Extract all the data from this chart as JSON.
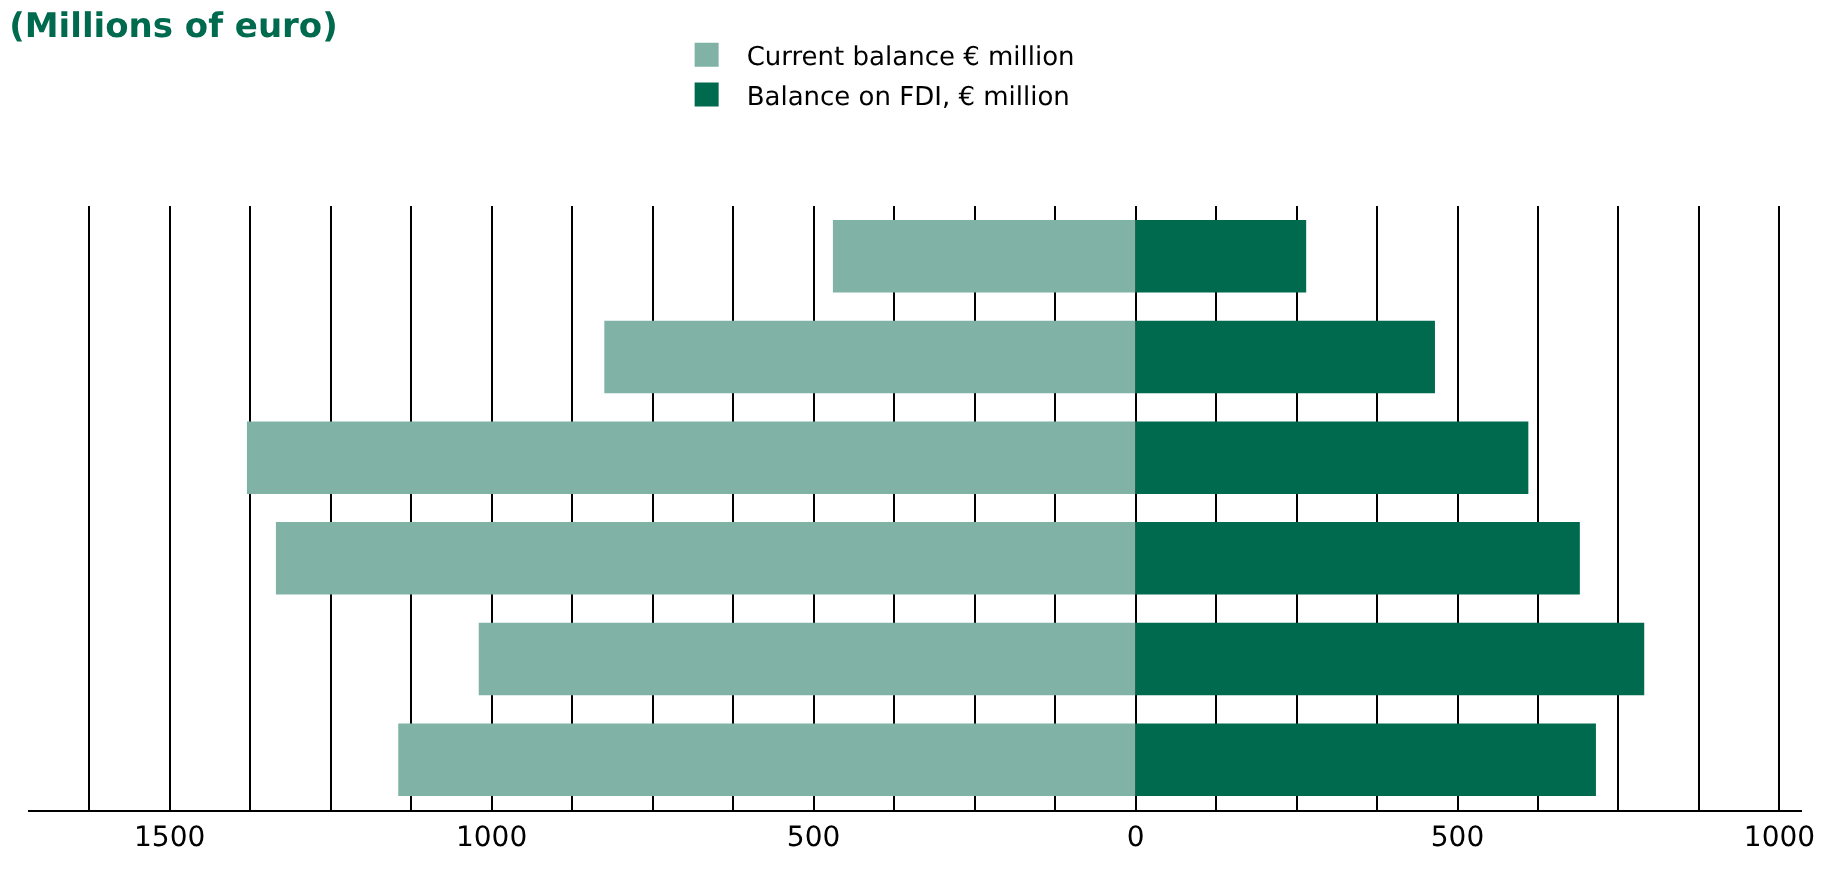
{
  "chart_data": {
    "type": "bar",
    "orientation": "horizontal",
    "stacked": true,
    "title": "(Millions of euro)",
    "categories": [
      null,
      null,
      null,
      null,
      null,
      null
    ],
    "series": [
      {
        "name": "Current balance € million",
        "color": "#80b3a6",
        "values": [
          -470,
          -825,
          -1380,
          -1335,
          -1020,
          -1145
        ]
      },
      {
        "name": "Balance on FDI, € million",
        "color": "#006a4e",
        "values": [
          265,
          465,
          610,
          690,
          790,
          715
        ]
      }
    ],
    "xlim": [
      -1720,
      1035
    ],
    "xticks": [
      {
        "value": -1625,
        "label": null
      },
      {
        "value": -1500,
        "label": "1500"
      },
      {
        "value": -1375,
        "label": null
      },
      {
        "value": -1250,
        "label": null
      },
      {
        "value": -1125,
        "label": null
      },
      {
        "value": -1000,
        "label": "1000"
      },
      {
        "value": -875,
        "label": null
      },
      {
        "value": -750,
        "label": null
      },
      {
        "value": -625,
        "label": null
      },
      {
        "value": -500,
        "label": "500"
      },
      {
        "value": -375,
        "label": null
      },
      {
        "value": -250,
        "label": null
      },
      {
        "value": -125,
        "label": null
      },
      0,
      {
        "value": 125,
        "label": null
      },
      {
        "value": 250,
        "label": null
      },
      {
        "value": 375,
        "label": null
      },
      {
        "value": 500,
        "label": "500"
      },
      {
        "value": 625,
        "label": null
      },
      {
        "value": 750,
        "label": null
      },
      {
        "value": 875,
        "label": null
      },
      {
        "value": 1000,
        "label": "1000"
      }
    ],
    "grid": "x",
    "legend": "top",
    "tick_labels": "x"
  }
}
